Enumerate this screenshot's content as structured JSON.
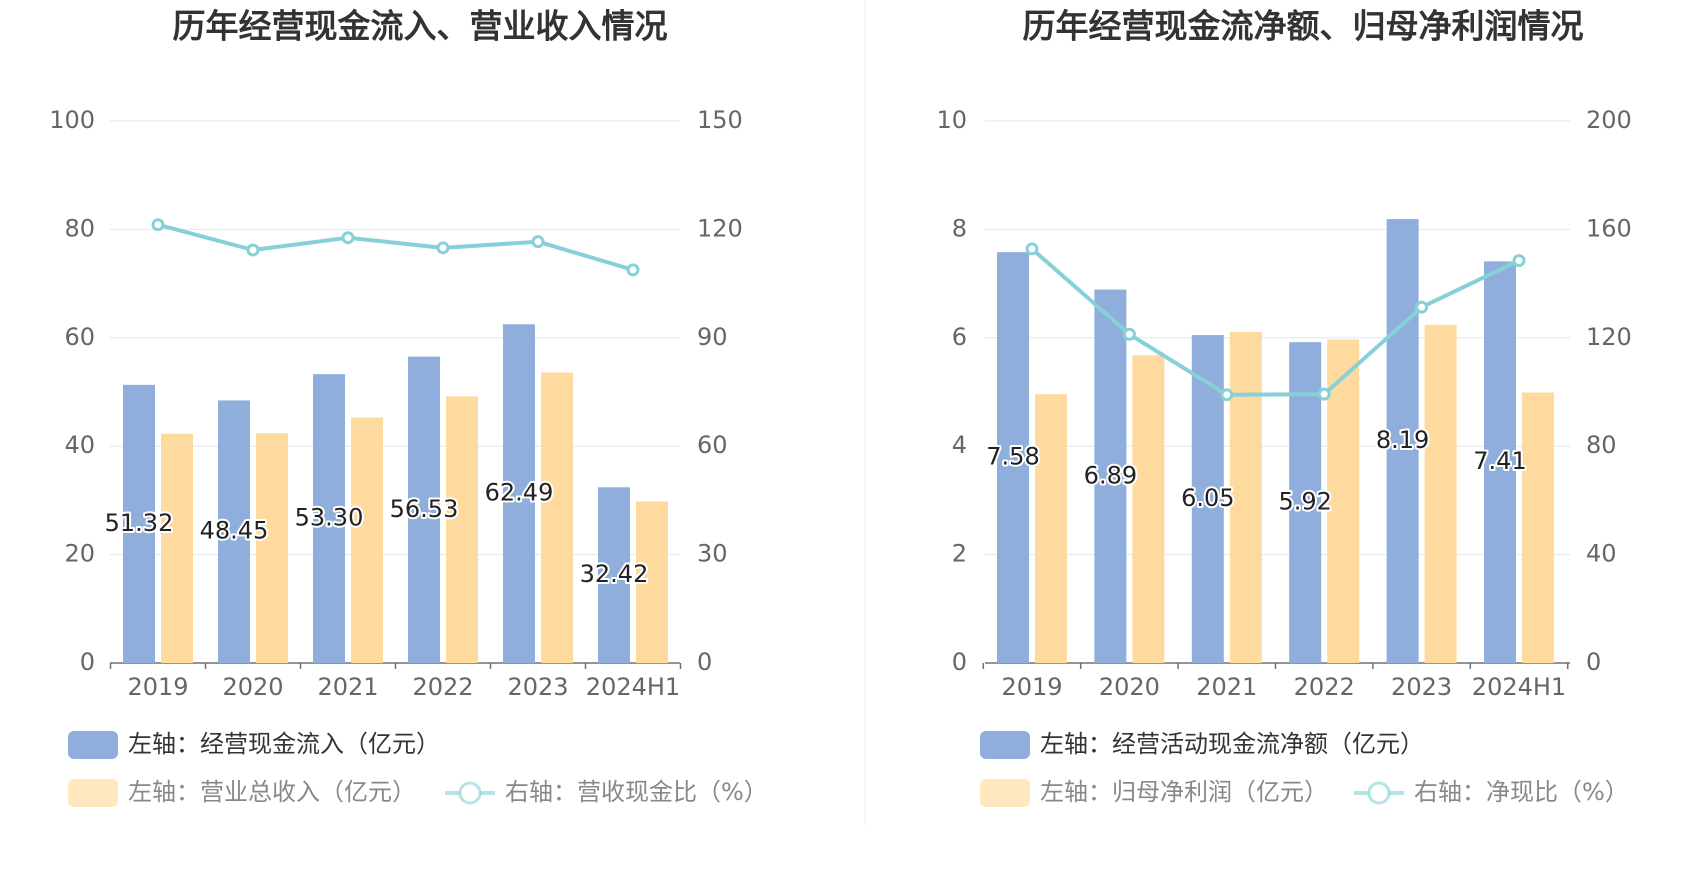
{
  "chart_data": [
    {
      "type": "bar",
      "title": "历年经营现金流入、营业收入情况",
      "categories": [
        "2019",
        "2020",
        "2021",
        "2022",
        "2023",
        "2024H1"
      ],
      "y_left": {
        "min": 0,
        "max": 100,
        "ticks": [
          "0",
          "20",
          "40",
          "60",
          "80",
          "100"
        ]
      },
      "y_right": {
        "min": 0,
        "max": 150,
        "ticks": [
          "0",
          "30",
          "60",
          "90",
          "120",
          "150"
        ]
      },
      "grid": true,
      "legend_position": "bottom",
      "series": [
        {
          "name": "左轴：经营现金流入（亿元）",
          "axis": "left",
          "type": "bar",
          "color": "#8FAEDC",
          "values": [
            51.32,
            48.45,
            53.3,
            56.53,
            62.49,
            32.42
          ],
          "labels": [
            "51.32",
            "48.45",
            "53.30",
            "56.53",
            "62.49",
            "32.42"
          ]
        },
        {
          "name": "左轴：营业总收入（亿元）",
          "axis": "left",
          "type": "bar",
          "color": "#FFDA9E",
          "values": [
            42.3,
            42.4,
            45.3,
            49.2,
            53.6,
            29.8
          ]
        },
        {
          "name": "右轴：营收现金比（%）",
          "axis": "right",
          "type": "line",
          "color": "#86D1D7",
          "values": [
            121.3,
            114.3,
            117.7,
            114.9,
            116.6,
            108.8
          ]
        }
      ]
    },
    {
      "type": "bar",
      "title": "历年经营现金流净额、归母净利润情况",
      "categories": [
        "2019",
        "2020",
        "2021",
        "2022",
        "2023",
        "2024H1"
      ],
      "y_left": {
        "min": 0,
        "max": 10,
        "ticks": [
          "0",
          "2",
          "4",
          "6",
          "8",
          "10"
        ]
      },
      "y_right": {
        "min": 0,
        "max": 200,
        "ticks": [
          "0",
          "40",
          "80",
          "120",
          "160",
          "200"
        ]
      },
      "grid": true,
      "legend_position": "bottom",
      "series": [
        {
          "name": "左轴：经营活动现金流净额（亿元）",
          "axis": "left",
          "type": "bar",
          "color": "#8FAEDC",
          "values": [
            7.58,
            6.89,
            6.05,
            5.92,
            8.19,
            7.41
          ],
          "labels": [
            "7.58",
            "6.89",
            "6.05",
            "5.92",
            "8.19",
            "7.41"
          ]
        },
        {
          "name": "左轴：归母净利润（亿元）",
          "axis": "left",
          "type": "bar",
          "color": "#FFDA9E",
          "values": [
            4.96,
            5.68,
            6.11,
            5.97,
            6.24,
            4.99
          ]
        },
        {
          "name": "右轴：净现比（%）",
          "axis": "right",
          "type": "line",
          "color": "#86D1D7",
          "values": [
            152.8,
            121.3,
            99.0,
            99.2,
            131.3,
            148.5
          ]
        }
      ]
    }
  ]
}
